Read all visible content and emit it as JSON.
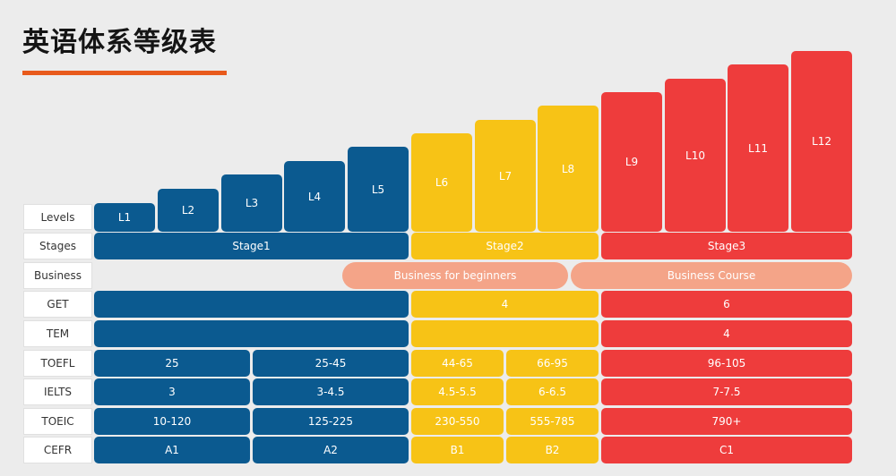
{
  "title": "英语体系等级表",
  "colors": {
    "stage1": "#0b5a90",
    "stage2": "#f7c316",
    "stage3": "#ee3c3c",
    "business": "#f4a488",
    "accent": "#e85a1c"
  },
  "row_labels": {
    "levels": "Levels",
    "stages": "Stages",
    "business": "Business",
    "get": "GET",
    "tem": "TEM",
    "toefl": "TOEFL",
    "ielts": "IELTS",
    "toeic": "TOEIC",
    "cefr": "CEFR"
  },
  "levels": [
    "L1",
    "L2",
    "L3",
    "L4",
    "L5",
    "L6",
    "L7",
    "L8",
    "L9",
    "L10",
    "L11",
    "L12"
  ],
  "stages": {
    "s1": "Stage1",
    "s2": "Stage2",
    "s3": "Stage3"
  },
  "business": {
    "beginners": "Business for beginners",
    "course": "Business Course"
  },
  "get": {
    "s2": "4",
    "s3": "6"
  },
  "tem": {
    "s3": "4"
  },
  "toefl": [
    "25",
    "25-45",
    "44-65",
    "66-95",
    "96-105"
  ],
  "ielts": [
    "3",
    "3-4.5",
    "4.5-5.5",
    "6-6.5",
    "7-7.5"
  ],
  "toeic": [
    "10-120",
    "125-225",
    "230-550",
    "555-785",
    "790+"
  ],
  "cefr": [
    "A1",
    "A2",
    "B1",
    "B2",
    "C1"
  ]
}
